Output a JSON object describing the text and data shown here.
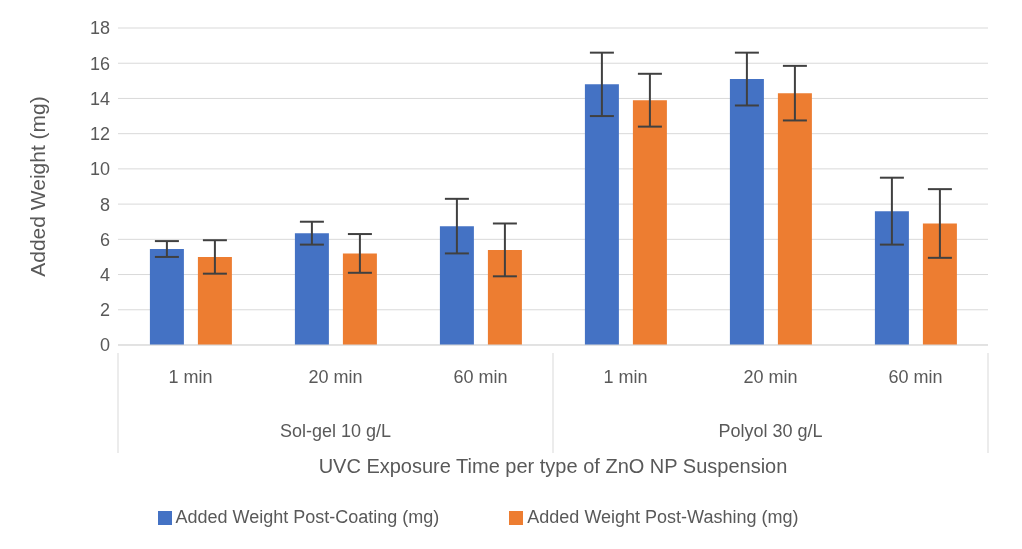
{
  "chart_data": {
    "type": "bar",
    "xlabel": "UVC Exposure Time per type of ZnO NP Suspension",
    "ylabel": "Added Weight (mg)",
    "categories": [
      "1 min",
      "20 min",
      "60 min",
      "1 min",
      "20 min",
      "60 min"
    ],
    "annotations": [
      "Sol-gel 10 g/L",
      "Polyol 30 g/L"
    ],
    "series": [
      {
        "name": "Added Weight Post-Coating (mg)",
        "color": "#4472c4",
        "values": [
          5.45,
          6.35,
          6.75,
          14.8,
          15.1,
          7.6
        ],
        "errors": [
          0.45,
          0.65,
          1.55,
          1.8,
          1.5,
          1.9
        ]
      },
      {
        "name": "Added Weight Post-Washing (mg)",
        "color": "#ed7d31",
        "values": [
          5.0,
          5.2,
          5.4,
          13.9,
          14.3,
          6.9
        ],
        "errors": [
          0.95,
          1.1,
          1.5,
          1.5,
          1.55,
          1.95
        ]
      }
    ],
    "ylim": [
      0,
      18
    ],
    "yticks": [
      0,
      2,
      4,
      6,
      8,
      10,
      12,
      14,
      16,
      18
    ],
    "grid": "y",
    "legend": "bottom"
  }
}
